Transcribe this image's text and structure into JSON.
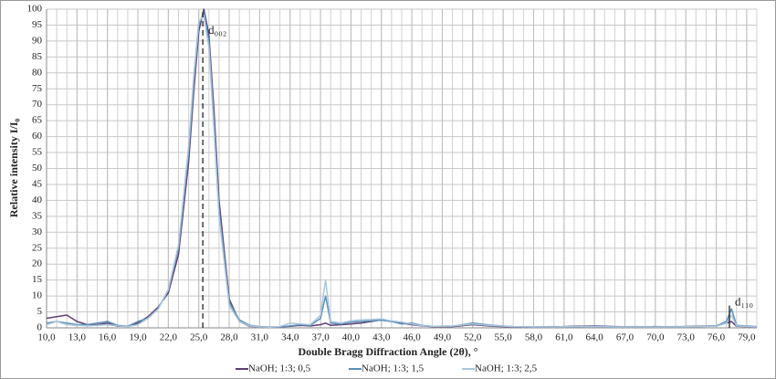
{
  "chart_data": {
    "type": "line",
    "ylabel": "Relative intensity I/I₀",
    "xlabel": "Double Bragg Diffraction Angle (2θ), °",
    "xlim": [
      10,
      80
    ],
    "ylim": [
      0,
      100
    ],
    "xticks": [
      {
        "value": 10,
        "label": "10,0"
      },
      {
        "value": 13,
        "label": "13,0"
      },
      {
        "value": 16,
        "label": "16,0"
      },
      {
        "value": 19,
        "label": "19,0"
      },
      {
        "value": 22,
        "label": "22,0"
      },
      {
        "value": 25,
        "label": "25,0"
      },
      {
        "value": 28,
        "label": "28,0"
      },
      {
        "value": 31,
        "label": "31,0"
      },
      {
        "value": 34,
        "label": "34,0"
      },
      {
        "value": 37,
        "label": "37,0"
      },
      {
        "value": 40,
        "label": "40,0"
      },
      {
        "value": 43,
        "label": "43,0"
      },
      {
        "value": 46,
        "label": "46,0"
      },
      {
        "value": 49,
        "label": "49,0"
      },
      {
        "value": 52,
        "label": "52,0"
      },
      {
        "value": 55,
        "label": "55,0"
      },
      {
        "value": 58,
        "label": "58,0"
      },
      {
        "value": 61,
        "label": "61,0"
      },
      {
        "value": 64,
        "label": "64,0"
      },
      {
        "value": 67,
        "label": "67,0"
      },
      {
        "value": 70,
        "label": "70,0"
      },
      {
        "value": 73,
        "label": "73,0"
      },
      {
        "value": 76,
        "label": "76,0"
      },
      {
        "value": 79,
        "label": "79,0"
      }
    ],
    "xminorticks": [
      10,
      11,
      12,
      13,
      14,
      15,
      16,
      17,
      18,
      19,
      20,
      21,
      22,
      23,
      24,
      25,
      26,
      27,
      28,
      29,
      30,
      31,
      32,
      33,
      34,
      35,
      36,
      37,
      38,
      39,
      40,
      41,
      42,
      43,
      44,
      45,
      46,
      47,
      48,
      49,
      50,
      51,
      52,
      53,
      54,
      55,
      56,
      57,
      58,
      59,
      60,
      61,
      62,
      63,
      64,
      65,
      66,
      67,
      68,
      69,
      70,
      71,
      72,
      73,
      74,
      75,
      76,
      77,
      78,
      79,
      80
    ],
    "yticks": [
      0,
      5,
      10,
      15,
      20,
      25,
      30,
      35,
      40,
      45,
      50,
      55,
      60,
      65,
      70,
      75,
      80,
      85,
      90,
      95,
      100
    ],
    "grid": true,
    "legend": "bottom",
    "x": [
      10,
      11,
      12,
      13,
      14,
      15,
      16,
      17,
      18,
      19,
      20,
      21,
      22,
      23,
      24,
      24.5,
      25,
      25.5,
      26,
      26.5,
      27,
      28,
      29,
      30,
      31,
      32,
      33,
      34,
      35,
      36,
      37,
      37.5,
      38,
      39,
      40,
      41,
      42,
      43,
      44,
      45,
      46,
      47,
      48,
      50,
      52,
      54,
      56,
      58,
      60,
      62,
      64,
      66,
      68,
      70,
      72,
      74,
      76,
      77,
      77.5,
      78,
      80
    ],
    "series": [
      {
        "name": "NaOH; 1:3; 0,5",
        "color": "#5e3f73",
        "values": [
          3,
          3.5,
          4,
          2,
          1,
          1,
          1.5,
          0.5,
          0.5,
          1.5,
          3.5,
          6.5,
          11,
          23,
          52,
          74,
          93,
          100,
          92,
          68,
          40,
          9,
          2,
          0.5,
          0.3,
          0.2,
          0.3,
          0.5,
          0.8,
          0.6,
          1,
          1.5,
          0.8,
          1,
          1.2,
          1.5,
          2,
          2.5,
          2,
          1.5,
          1,
          0.6,
          0.4,
          0.4,
          1,
          0.5,
          0.3,
          0.2,
          0.3,
          0.5,
          0.6,
          0.4,
          0.3,
          0.4,
          0.3,
          0.5,
          0.6,
          1.5,
          2,
          0.5,
          0.3
        ]
      },
      {
        "name": "NaOH; 1:3; 1,5",
        "color": "#5d8fba",
        "values": [
          1.5,
          2,
          1.5,
          1,
          1,
          1.5,
          2,
          0.8,
          0.5,
          2,
          3,
          6,
          12,
          25,
          55,
          77,
          95,
          99,
          90,
          64,
          37,
          8,
          2.5,
          0.8,
          0.4,
          0.3,
          0.3,
          0.6,
          1,
          0.8,
          3,
          10,
          1.5,
          1.2,
          1.8,
          2,
          2.2,
          2.4,
          2,
          1.2,
          1.5,
          0.8,
          0.5,
          0.5,
          1.5,
          0.8,
          0.4,
          0.3,
          0.4,
          0.3,
          0.5,
          0.3,
          0.4,
          0.3,
          0.4,
          0.4,
          0.6,
          2,
          6,
          0.8,
          0.4
        ]
      },
      {
        "name": "NaOH; 1:3; 2,5",
        "color": "#a9c6de",
        "values": [
          1,
          2,
          1,
          0.8,
          0.6,
          0.8,
          1,
          0.6,
          0.4,
          1,
          3,
          6,
          12,
          26,
          57,
          79,
          96,
          98,
          88,
          62,
          35,
          7,
          2,
          0.6,
          0.3,
          0.2,
          0.4,
          1.5,
          1.2,
          1,
          4,
          15,
          2,
          1.5,
          2.2,
          2.5,
          2.6,
          2.8,
          2.2,
          1.8,
          1.2,
          0.7,
          0.5,
          0.6,
          1.2,
          0.7,
          0.4,
          0.3,
          0.3,
          0.4,
          0.4,
          0.3,
          0.3,
          0.3,
          0.3,
          0.4,
          0.5,
          1.5,
          4,
          0.6,
          0.3
        ]
      }
    ],
    "annotations": [
      {
        "label": "d₀₀₂",
        "x": 25.4,
        "y": 100
      },
      {
        "label": "d₁₁₀",
        "x": 77.3,
        "y": 7
      }
    ]
  }
}
